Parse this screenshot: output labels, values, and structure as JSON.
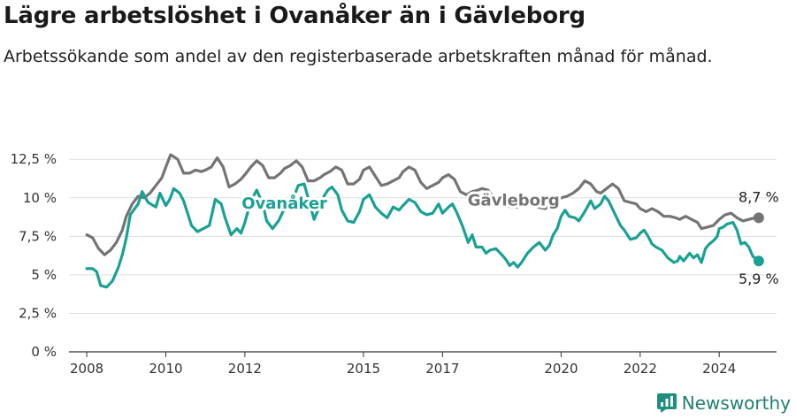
{
  "header": {
    "title": "Lägre arbetslöshet i Ovanåker än i Gävleborg",
    "subtitle": "Arbetssökande som andel av den registerbaserade arbetskraften månad för månad."
  },
  "brand": {
    "name": "Newsworthy",
    "color": "#1e8f7f"
  },
  "colors": {
    "ovanaker": "#1aa194",
    "gavleborg": "#747474",
    "grid": "#dddddd",
    "axis": "#333333"
  },
  "chart_data": {
    "type": "line",
    "title": "Lägre arbetslöshet i Ovanåker än i Gävleborg",
    "subtitle": "Arbetssökande som andel av den registerbaserade arbetskraften månad för månad.",
    "xlabel": "",
    "ylabel": "",
    "xlim": [
      2007.55,
      2025.45
    ],
    "ylim": [
      0,
      13.2
    ],
    "x_ticks": [
      2008,
      2010,
      2012,
      2015,
      2017,
      2020,
      2022,
      2024
    ],
    "x_tick_labels": [
      "2008",
      "2010",
      "2012",
      "2015",
      "2017",
      "2020",
      "2022",
      "2024"
    ],
    "y_ticks": [
      0,
      2.5,
      5,
      7.5,
      10,
      12.5
    ],
    "y_tick_labels": [
      "0 %",
      "2,5 %",
      "5 %",
      "7,5 %",
      "10 %",
      "12,5 %"
    ],
    "grid": "horizontal",
    "series": [
      {
        "name": "Gävleborg",
        "label_x": 2018.8,
        "label_y": 9.5,
        "end_label": "8,7 %",
        "points": [
          [
            2008.0,
            7.6
          ],
          [
            2008.15,
            7.4
          ],
          [
            2008.3,
            6.7
          ],
          [
            2008.45,
            6.3
          ],
          [
            2008.6,
            6.6
          ],
          [
            2008.75,
            7.1
          ],
          [
            2008.9,
            7.9
          ],
          [
            2009.0,
            8.8
          ],
          [
            2009.15,
            9.6
          ],
          [
            2009.3,
            10.1
          ],
          [
            2009.45,
            10.0
          ],
          [
            2009.6,
            10.3
          ],
          [
            2009.75,
            10.8
          ],
          [
            2009.9,
            11.3
          ],
          [
            2010.0,
            12.0
          ],
          [
            2010.12,
            12.8
          ],
          [
            2010.3,
            12.5
          ],
          [
            2010.45,
            11.6
          ],
          [
            2010.6,
            11.6
          ],
          [
            2010.75,
            11.8
          ],
          [
            2010.9,
            11.7
          ],
          [
            2011.0,
            11.8
          ],
          [
            2011.15,
            12.0
          ],
          [
            2011.3,
            12.6
          ],
          [
            2011.45,
            12.0
          ],
          [
            2011.6,
            10.7
          ],
          [
            2011.75,
            10.9
          ],
          [
            2011.9,
            11.2
          ],
          [
            2012.0,
            11.5
          ],
          [
            2012.15,
            12.0
          ],
          [
            2012.3,
            12.4
          ],
          [
            2012.45,
            12.1
          ],
          [
            2012.6,
            11.3
          ],
          [
            2012.75,
            11.3
          ],
          [
            2012.9,
            11.6
          ],
          [
            2013.0,
            11.9
          ],
          [
            2013.15,
            12.1
          ],
          [
            2013.3,
            12.4
          ],
          [
            2013.45,
            12.0
          ],
          [
            2013.6,
            11.1
          ],
          [
            2013.75,
            11.1
          ],
          [
            2013.9,
            11.3
          ],
          [
            2014.0,
            11.5
          ],
          [
            2014.15,
            11.7
          ],
          [
            2014.3,
            12.0
          ],
          [
            2014.45,
            11.8
          ],
          [
            2014.6,
            10.9
          ],
          [
            2014.75,
            10.9
          ],
          [
            2014.9,
            11.2
          ],
          [
            2015.0,
            11.8
          ],
          [
            2015.15,
            12.0
          ],
          [
            2015.3,
            11.4
          ],
          [
            2015.45,
            10.8
          ],
          [
            2015.6,
            10.9
          ],
          [
            2015.75,
            11.1
          ],
          [
            2015.9,
            11.3
          ],
          [
            2016.0,
            11.7
          ],
          [
            2016.15,
            12.0
          ],
          [
            2016.3,
            11.8
          ],
          [
            2016.45,
            11.0
          ],
          [
            2016.6,
            10.6
          ],
          [
            2016.75,
            10.8
          ],
          [
            2016.9,
            11.0
          ],
          [
            2017.0,
            11.3
          ],
          [
            2017.15,
            11.5
          ],
          [
            2017.3,
            11.2
          ],
          [
            2017.45,
            10.4
          ],
          [
            2017.6,
            10.2
          ],
          [
            2017.75,
            10.4
          ],
          [
            2017.9,
            10.5
          ],
          [
            2018.0,
            10.6
          ],
          [
            2018.15,
            10.5
          ],
          [
            2018.3,
            10.0
          ],
          [
            2018.45,
            9.6
          ],
          [
            2018.6,
            9.5
          ],
          [
            2018.75,
            9.4
          ],
          [
            2018.9,
            9.4
          ],
          [
            2019.0,
            9.5
          ],
          [
            2019.2,
            9.7
          ],
          [
            2019.4,
            9.4
          ],
          [
            2019.6,
            9.3
          ],
          [
            2019.8,
            9.6
          ],
          [
            2019.95,
            9.9
          ],
          [
            2020.0,
            10.0
          ],
          [
            2020.15,
            10.1
          ],
          [
            2020.3,
            10.3
          ],
          [
            2020.45,
            10.6
          ],
          [
            2020.6,
            11.1
          ],
          [
            2020.75,
            10.9
          ],
          [
            2020.9,
            10.4
          ],
          [
            2021.0,
            10.3
          ],
          [
            2021.15,
            10.6
          ],
          [
            2021.3,
            10.9
          ],
          [
            2021.45,
            10.6
          ],
          [
            2021.6,
            9.8
          ],
          [
            2021.75,
            9.7
          ],
          [
            2021.9,
            9.6
          ],
          [
            2022.0,
            9.3
          ],
          [
            2022.15,
            9.1
          ],
          [
            2022.3,
            9.3
          ],
          [
            2022.45,
            9.1
          ],
          [
            2022.6,
            8.8
          ],
          [
            2022.75,
            8.8
          ],
          [
            2022.9,
            8.7
          ],
          [
            2023.0,
            8.6
          ],
          [
            2023.15,
            8.8
          ],
          [
            2023.3,
            8.6
          ],
          [
            2023.45,
            8.4
          ],
          [
            2023.55,
            8.0
          ],
          [
            2023.7,
            8.1
          ],
          [
            2023.85,
            8.2
          ],
          [
            2024.0,
            8.6
          ],
          [
            2024.15,
            8.9
          ],
          [
            2024.3,
            9.0
          ],
          [
            2024.45,
            8.7
          ],
          [
            2024.6,
            8.5
          ],
          [
            2024.75,
            8.6
          ],
          [
            2024.9,
            8.7
          ],
          [
            2025.0,
            8.7
          ]
        ]
      },
      {
        "name": "Ovanåker",
        "label_x": 2013.0,
        "label_y": 9.3,
        "end_label": "5,9 %",
        "points": [
          [
            2008.0,
            5.4
          ],
          [
            2008.15,
            5.4
          ],
          [
            2008.25,
            5.2
          ],
          [
            2008.35,
            4.3
          ],
          [
            2008.5,
            4.2
          ],
          [
            2008.65,
            4.6
          ],
          [
            2008.8,
            5.5
          ],
          [
            2008.9,
            6.3
          ],
          [
            2009.0,
            7.4
          ],
          [
            2009.1,
            8.9
          ],
          [
            2009.3,
            9.6
          ],
          [
            2009.4,
            10.4
          ],
          [
            2009.55,
            9.7
          ],
          [
            2009.75,
            9.4
          ],
          [
            2009.85,
            10.3
          ],
          [
            2010.0,
            9.5
          ],
          [
            2010.1,
            9.9
          ],
          [
            2010.2,
            10.6
          ],
          [
            2010.35,
            10.3
          ],
          [
            2010.45,
            9.8
          ],
          [
            2010.55,
            9.0
          ],
          [
            2010.65,
            8.2
          ],
          [
            2010.8,
            7.8
          ],
          [
            2010.95,
            8.0
          ],
          [
            2011.1,
            8.2
          ],
          [
            2011.25,
            9.9
          ],
          [
            2011.4,
            9.6
          ],
          [
            2011.5,
            8.7
          ],
          [
            2011.65,
            7.6
          ],
          [
            2011.8,
            8.0
          ],
          [
            2011.9,
            7.7
          ],
          [
            2012.0,
            8.4
          ],
          [
            2012.15,
            9.8
          ],
          [
            2012.3,
            10.5
          ],
          [
            2012.45,
            9.6
          ],
          [
            2012.55,
            8.5
          ],
          [
            2012.7,
            8.0
          ],
          [
            2012.85,
            8.5
          ],
          [
            2013.0,
            9.3
          ],
          [
            2013.2,
            9.8
          ],
          [
            2013.35,
            10.8
          ],
          [
            2013.5,
            10.9
          ],
          [
            2013.6,
            10.0
          ],
          [
            2013.75,
            8.6
          ],
          [
            2013.9,
            9.5
          ],
          [
            2014.0,
            10.1
          ],
          [
            2014.1,
            10.5
          ],
          [
            2014.2,
            10.7
          ],
          [
            2014.35,
            10.2
          ],
          [
            2014.45,
            9.2
          ],
          [
            2014.6,
            8.5
          ],
          [
            2014.75,
            8.4
          ],
          [
            2014.9,
            9.1
          ],
          [
            2015.0,
            9.9
          ],
          [
            2015.15,
            10.2
          ],
          [
            2015.3,
            9.4
          ],
          [
            2015.45,
            9.0
          ],
          [
            2015.6,
            8.7
          ],
          [
            2015.75,
            9.4
          ],
          [
            2015.9,
            9.2
          ],
          [
            2016.0,
            9.5
          ],
          [
            2016.15,
            9.9
          ],
          [
            2016.3,
            9.7
          ],
          [
            2016.45,
            9.1
          ],
          [
            2016.6,
            8.9
          ],
          [
            2016.75,
            9.0
          ],
          [
            2016.9,
            9.6
          ],
          [
            2017.0,
            9.0
          ],
          [
            2017.15,
            9.4
          ],
          [
            2017.25,
            9.6
          ],
          [
            2017.35,
            9.1
          ],
          [
            2017.5,
            8.2
          ],
          [
            2017.65,
            7.1
          ],
          [
            2017.75,
            7.6
          ],
          [
            2017.85,
            6.8
          ],
          [
            2018.0,
            6.8
          ],
          [
            2018.1,
            6.4
          ],
          [
            2018.2,
            6.6
          ],
          [
            2018.35,
            6.7
          ],
          [
            2018.5,
            6.3
          ],
          [
            2018.6,
            6.0
          ],
          [
            2018.7,
            5.6
          ],
          [
            2018.8,
            5.8
          ],
          [
            2018.9,
            5.5
          ],
          [
            2019.0,
            5.8
          ],
          [
            2019.15,
            6.4
          ],
          [
            2019.3,
            6.8
          ],
          [
            2019.45,
            7.1
          ],
          [
            2019.6,
            6.6
          ],
          [
            2019.7,
            6.9
          ],
          [
            2019.8,
            7.6
          ],
          [
            2019.9,
            8.0
          ],
          [
            2020.0,
            8.8
          ],
          [
            2020.1,
            9.2
          ],
          [
            2020.2,
            8.8
          ],
          [
            2020.35,
            8.7
          ],
          [
            2020.45,
            8.5
          ],
          [
            2020.6,
            9.1
          ],
          [
            2020.75,
            9.8
          ],
          [
            2020.85,
            9.3
          ],
          [
            2021.0,
            9.6
          ],
          [
            2021.1,
            10.1
          ],
          [
            2021.2,
            9.8
          ],
          [
            2021.35,
            9.0
          ],
          [
            2021.5,
            8.2
          ],
          [
            2021.6,
            7.9
          ],
          [
            2021.75,
            7.3
          ],
          [
            2021.9,
            7.4
          ],
          [
            2022.0,
            7.7
          ],
          [
            2022.1,
            7.9
          ],
          [
            2022.2,
            7.5
          ],
          [
            2022.3,
            7.0
          ],
          [
            2022.4,
            6.8
          ],
          [
            2022.55,
            6.6
          ],
          [
            2022.7,
            6.1
          ],
          [
            2022.85,
            5.8
          ],
          [
            2022.95,
            5.9
          ],
          [
            2023.0,
            6.2
          ],
          [
            2023.1,
            5.9
          ],
          [
            2023.25,
            6.4
          ],
          [
            2023.35,
            6.1
          ],
          [
            2023.45,
            6.3
          ],
          [
            2023.55,
            5.8
          ],
          [
            2023.65,
            6.7
          ],
          [
            2023.75,
            7.0
          ],
          [
            2023.85,
            7.2
          ],
          [
            2023.95,
            7.5
          ],
          [
            2024.0,
            8.0
          ],
          [
            2024.1,
            8.1
          ],
          [
            2024.2,
            8.3
          ],
          [
            2024.35,
            8.4
          ],
          [
            2024.45,
            7.9
          ],
          [
            2024.55,
            7.0
          ],
          [
            2024.65,
            7.1
          ],
          [
            2024.75,
            6.8
          ],
          [
            2024.85,
            6.2
          ],
          [
            2025.0,
            5.9
          ]
        ]
      }
    ]
  }
}
